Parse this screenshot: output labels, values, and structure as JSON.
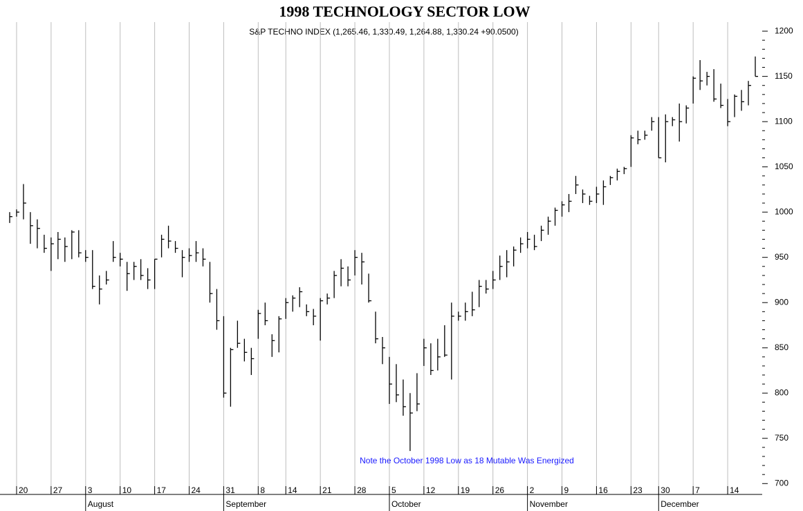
{
  "chart_data": {
    "type": "ohlc",
    "title": "1998 TECHNOLOGY SECTOR LOW",
    "subtitle": "S&P TECHNO INDEX (1,265.46, 1,330.49, 1,264.88, 1,330.24 +90.0500)",
    "annotation": "Note the October 1998 Low as 18 Mutable Was Energized",
    "color": "#000000",
    "annotation_color": "#1a1aff",
    "grid": true,
    "x": [
      0,
      1,
      2,
      3,
      4,
      5,
      6,
      7,
      8,
      9,
      10,
      11,
      12,
      13,
      14,
      15,
      16,
      17,
      18,
      19,
      20,
      21,
      22,
      23,
      24,
      25,
      26,
      27,
      28,
      29,
      30,
      31,
      32,
      33,
      34,
      35,
      36,
      37,
      38,
      39,
      40,
      41,
      42,
      43,
      44,
      45,
      46,
      47,
      48,
      49,
      50,
      51,
      52,
      53,
      54,
      55,
      56,
      57,
      58,
      59,
      60,
      61,
      62,
      63,
      64,
      65,
      66,
      67,
      68,
      69,
      70,
      71,
      72,
      73,
      74,
      75,
      76,
      77,
      78,
      79,
      80,
      81,
      82,
      83,
      84,
      85,
      86,
      87,
      88,
      89,
      90,
      91,
      92,
      93,
      94,
      95,
      96,
      97,
      98,
      99,
      100,
      101,
      102,
      103,
      104,
      105,
      106,
      107,
      108
    ],
    "high": [
      1000,
      1003,
      1031,
      1000,
      992,
      975,
      972,
      978,
      972,
      980,
      980,
      958,
      958,
      930,
      935,
      968,
      955,
      945,
      945,
      948,
      938,
      948,
      975,
      985,
      968,
      958,
      960,
      968,
      960,
      945,
      915,
      885,
      850,
      880,
      860,
      850,
      892,
      900,
      865,
      885,
      905,
      908,
      917,
      898,
      893,
      905,
      910,
      935,
      948,
      940,
      958,
      955,
      932,
      890,
      862,
      840,
      832,
      815,
      800,
      822,
      860,
      855,
      860,
      875,
      900,
      890,
      900,
      912,
      925,
      925,
      935,
      952,
      958,
      962,
      972,
      978,
      975,
      985,
      995,
      1005,
      1012,
      1020,
      1040,
      1025,
      1018,
      1028,
      1035,
      1040,
      1048,
      1050,
      1085,
      1090,
      1090,
      1105,
      1105,
      1108,
      1105,
      1120,
      1118,
      1150,
      1168,
      1155,
      1158,
      1142,
      1125,
      1130,
      1135,
      1145,
      1172
    ],
    "low": [
      988,
      995,
      992,
      965,
      960,
      955,
      935,
      948,
      945,
      948,
      950,
      945,
      915,
      898,
      920,
      945,
      940,
      913,
      925,
      925,
      915,
      915,
      950,
      960,
      955,
      928,
      945,
      945,
      940,
      900,
      870,
      795,
      785,
      850,
      835,
      820,
      860,
      875,
      840,
      845,
      882,
      890,
      895,
      885,
      875,
      858,
      898,
      905,
      918,
      918,
      930,
      920,
      900,
      855,
      832,
      788,
      790,
      775,
      736,
      780,
      830,
      820,
      825,
      840,
      815,
      880,
      880,
      885,
      895,
      910,
      915,
      925,
      928,
      940,
      955,
      960,
      958,
      968,
      975,
      985,
      995,
      1000,
      1020,
      1010,
      1008,
      1010,
      1008,
      1030,
      1035,
      1042,
      1050,
      1075,
      1080,
      1090,
      1060,
      1055,
      1095,
      1078,
      1098,
      1120,
      1135,
      1140,
      1122,
      1115,
      1095,
      1105,
      1112,
      1118,
      1150
    ],
    "close": [
      995,
      1000,
      1010,
      985,
      982,
      960,
      965,
      970,
      962,
      978,
      955,
      950,
      918,
      915,
      925,
      950,
      948,
      932,
      940,
      930,
      925,
      948,
      970,
      968,
      960,
      950,
      952,
      955,
      948,
      910,
      880,
      800,
      848,
      855,
      845,
      838,
      888,
      880,
      858,
      882,
      900,
      905,
      912,
      890,
      885,
      902,
      905,
      930,
      938,
      925,
      950,
      945,
      902,
      860,
      850,
      810,
      798,
      785,
      778,
      788,
      850,
      825,
      840,
      842,
      885,
      885,
      890,
      892,
      918,
      915,
      925,
      940,
      945,
      958,
      965,
      970,
      962,
      980,
      990,
      1002,
      1008,
      1012,
      1030,
      1020,
      1012,
      1020,
      1028,
      1038,
      1045,
      1048,
      1082,
      1080,
      1085,
      1100,
      1060,
      1100,
      1102,
      1100,
      1115,
      1148,
      1145,
      1150,
      1125,
      1118,
      1100,
      1128,
      1122,
      1140,
      1150
    ],
    "xlim": [
      -1,
      109
    ],
    "xticks": [
      {
        "value": 1,
        "label": "20"
      },
      {
        "value": 6,
        "label": "27"
      },
      {
        "value": 11,
        "label": "3"
      },
      {
        "value": 16,
        "label": "10"
      },
      {
        "value": 21,
        "label": "17"
      },
      {
        "value": 26,
        "label": "24"
      },
      {
        "value": 31,
        "label": "31"
      },
      {
        "value": 36,
        "label": "8"
      },
      {
        "value": 40,
        "label": "14"
      },
      {
        "value": 45,
        "label": "21"
      },
      {
        "value": 50,
        "label": "28"
      },
      {
        "value": 55,
        "label": "5"
      },
      {
        "value": 60,
        "label": "12"
      },
      {
        "value": 65,
        "label": "19"
      },
      {
        "value": 70,
        "label": "26"
      },
      {
        "value": 75,
        "label": "2"
      },
      {
        "value": 80,
        "label": "9"
      },
      {
        "value": 85,
        "label": "16"
      },
      {
        "value": 90,
        "label": "23"
      },
      {
        "value": 94,
        "label": "30"
      },
      {
        "value": 99,
        "label": "7"
      },
      {
        "value": 104,
        "label": "14"
      }
    ],
    "month_ticks": [
      {
        "value": 11,
        "label": "August"
      },
      {
        "value": 31,
        "label": "September"
      },
      {
        "value": 55,
        "label": "October"
      },
      {
        "value": 75,
        "label": "November"
      },
      {
        "value": 94,
        "label": "December"
      }
    ],
    "ylim": [
      688,
      1210
    ],
    "yticks": [
      700,
      750,
      800,
      850,
      900,
      950,
      1000,
      1050,
      1100,
      1150,
      1200
    ]
  }
}
